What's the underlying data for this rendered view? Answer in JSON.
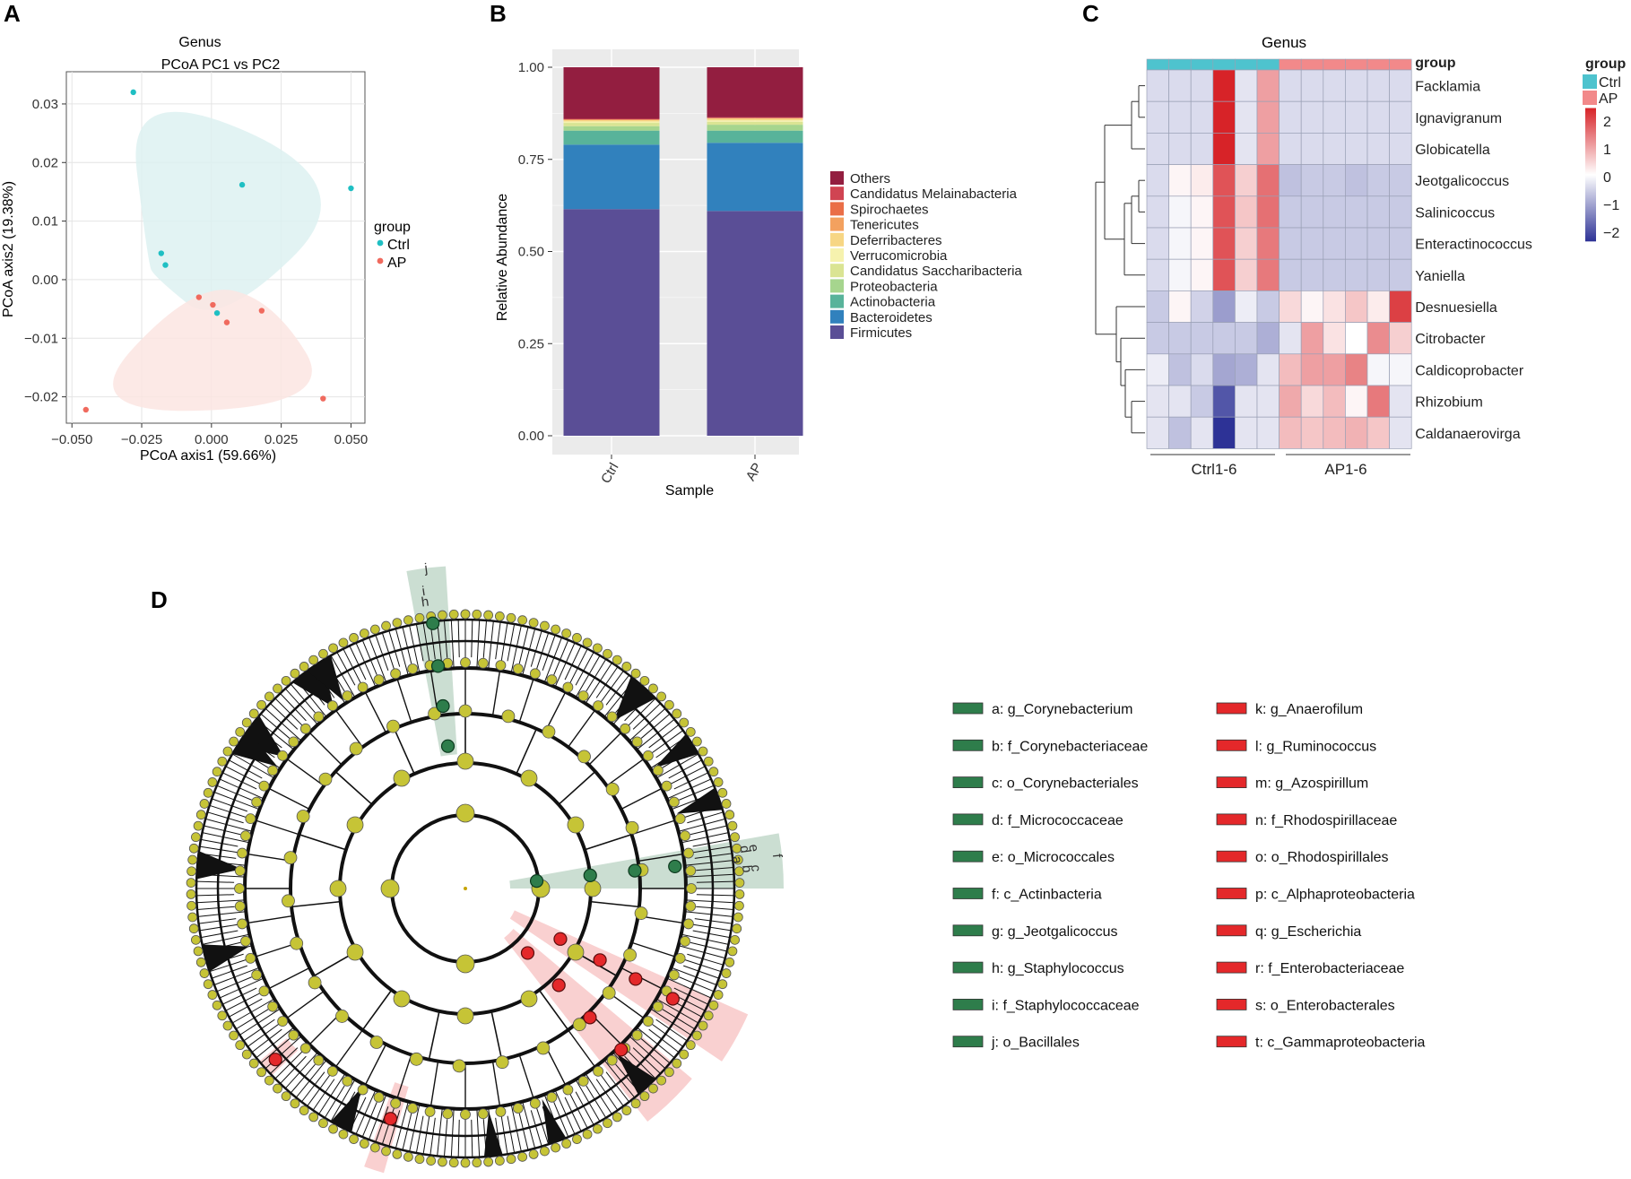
{
  "panels": {
    "A": "A",
    "B": "B",
    "C": "C",
    "D": "D"
  },
  "chart_data": [
    {
      "type": "scatter",
      "title": "Genus",
      "subtitle": "PCoA PC1 vs PC2",
      "xlabel": "PCoA axis1 (59.66%)",
      "ylabel": "PCoA axis2 (19.38%)",
      "xlim": [
        -0.052,
        0.055
      ],
      "ylim": [
        -0.0245,
        0.0355
      ],
      "xticks": [
        -0.05,
        -0.025,
        0.0,
        0.025,
        0.05
      ],
      "xtick_labels": [
        "−0.050",
        "−0.025",
        "0.000",
        "0.025",
        "0.050"
      ],
      "yticks": [
        -0.02,
        -0.01,
        0.0,
        0.01,
        0.02,
        0.03
      ],
      "ytick_labels": [
        "−0.02",
        "−0.01",
        "0.00",
        "0.01",
        "0.02",
        "0.03"
      ],
      "legend_title": "group",
      "series": [
        {
          "name": "Ctrl",
          "color": "#1FBFC3",
          "hull_color": "#DDF1F1",
          "points": [
            [
              -0.028,
              0.032
            ],
            [
              0.011,
              0.0162
            ],
            [
              0.05,
              0.0156
            ],
            [
              -0.018,
              0.0045
            ],
            [
              -0.0165,
              0.0025
            ],
            [
              0.002,
              -0.0057
            ]
          ]
        },
        {
          "name": "AP",
          "color": "#F06A5E",
          "hull_color": "#FBE5E2",
          "points": [
            [
              -0.0045,
              -0.003
            ],
            [
              0.0005,
              -0.0043
            ],
            [
              0.0055,
              -0.0073
            ],
            [
              0.018,
              -0.0053
            ],
            [
              0.04,
              -0.0203
            ],
            [
              -0.045,
              -0.0222
            ]
          ]
        }
      ]
    },
    {
      "type": "bar",
      "stacked": true,
      "xlabel": "Sample",
      "ylabel": "Relative Abundance",
      "categories": [
        "Ctrl",
        "AP"
      ],
      "ylim": [
        0,
        1.0
      ],
      "yticks": [
        0,
        0.25,
        0.5,
        0.75,
        1.0
      ],
      "ytick_labels": [
        "0.00",
        "0.25",
        "0.50",
        "0.75",
        "1.00"
      ],
      "series": [
        {
          "name": "Firmicutes",
          "color": "#5A4E96",
          "values": [
            0.615,
            0.61
          ]
        },
        {
          "name": "Bacteroidetes",
          "color": "#3181BD",
          "values": [
            0.175,
            0.185
          ]
        },
        {
          "name": "Actinobacteria",
          "color": "#58B39A",
          "values": [
            0.038,
            0.033
          ]
        },
        {
          "name": "Proteobacteria",
          "color": "#A6D58E",
          "values": [
            0.012,
            0.016
          ]
        },
        {
          "name": "Candidatus Saccharibacteria",
          "color": "#DAE493",
          "values": [
            0.009,
            0.008
          ]
        },
        {
          "name": "Verrucomicrobia",
          "color": "#F6F2AE",
          "values": [
            0.004,
            0.004
          ]
        },
        {
          "name": "Deferribacteres",
          "color": "#F7D684",
          "values": [
            0.004,
            0.005
          ]
        },
        {
          "name": "Tenericutes",
          "color": "#F3A15F",
          "values": [
            0.001,
            0.001
          ]
        },
        {
          "name": "Spirochaetes",
          "color": "#EA6E47",
          "values": [
            0.001,
            0.001
          ]
        },
        {
          "name": "Candidatus Melainabacteria",
          "color": "#D04452",
          "values": [
            0.001,
            0.001
          ]
        },
        {
          "name": "Others",
          "color": "#931E40",
          "values": [
            0.14,
            0.136
          ]
        }
      ],
      "legend_order": [
        "Others",
        "Candidatus Melainabacteria",
        "Spirochaetes",
        "Tenericutes",
        "Deferribacteres",
        "Verrucomicrobia",
        "Candidatus Saccharibacteria",
        "Proteobacteria",
        "Actinobacteria",
        "Bacteroidetes",
        "Firmicutes"
      ]
    },
    {
      "type": "heatmap",
      "title": "Genus",
      "annotation_title": "group",
      "groups": [
        {
          "name": "Ctrl",
          "color": "#4EC3CE"
        },
        {
          "name": "AP",
          "color": "#F2898A"
        }
      ],
      "column_groups": [
        "Ctrl",
        "Ctrl",
        "Ctrl",
        "Ctrl",
        "Ctrl",
        "Ctrl",
        "AP",
        "AP",
        "AP",
        "AP",
        "AP",
        "AP"
      ],
      "group_labels": [
        "Ctrl1-6",
        "AP1-6"
      ],
      "scale_ticks": [
        2,
        1,
        0,
        -1,
        -2
      ],
      "scale_tick_labels": [
        "2",
        "1",
        "0",
        "−1",
        "−2"
      ],
      "rows": [
        "Facklamia",
        "Ignavigranum",
        "Globicatella",
        "Jeotgalicoccus",
        "Salinicoccus",
        "Enteractinococcus",
        "Yaniella",
        "Desnuesiella",
        "Citrobacter",
        "Caldicoprobacter",
        "Rhizobium",
        "Caldanaerovirga"
      ],
      "values": [
        [
          -0.4,
          -0.4,
          -0.4,
          2.3,
          -0.3,
          1.0,
          -0.4,
          -0.4,
          -0.4,
          -0.4,
          -0.4,
          -0.4
        ],
        [
          -0.4,
          -0.4,
          -0.4,
          2.3,
          -0.3,
          1.0,
          -0.4,
          -0.4,
          -0.4,
          -0.4,
          -0.4,
          -0.4
        ],
        [
          -0.4,
          -0.4,
          -0.4,
          2.3,
          -0.3,
          1.0,
          -0.4,
          -0.4,
          -0.4,
          -0.4,
          -0.4,
          -0.4
        ],
        [
          -0.4,
          0.1,
          0.2,
          1.8,
          0.5,
          1.5,
          -0.7,
          -0.6,
          -0.6,
          -0.7,
          -0.6,
          -0.6
        ],
        [
          -0.4,
          -0.1,
          0.1,
          1.8,
          0.6,
          1.5,
          -0.6,
          -0.6,
          -0.6,
          -0.6,
          -0.6,
          -0.6
        ],
        [
          -0.4,
          -0.1,
          0.1,
          1.8,
          0.5,
          1.4,
          -0.6,
          -0.6,
          -0.6,
          -0.6,
          -0.6,
          -0.6
        ],
        [
          -0.4,
          -0.1,
          0.1,
          1.8,
          0.5,
          1.4,
          -0.6,
          -0.6,
          -0.6,
          -0.6,
          -0.6,
          -0.6
        ],
        [
          -0.6,
          0.1,
          -0.5,
          -1.1,
          -0.2,
          -0.6,
          0.4,
          0.1,
          0.3,
          0.6,
          0.2,
          2.0
        ],
        [
          -0.6,
          -0.6,
          -0.6,
          -0.6,
          -0.6,
          -0.9,
          -0.3,
          1.0,
          0.3,
          0.0,
          1.2,
          0.5
        ],
        [
          -0.2,
          -0.7,
          -0.4,
          -1.0,
          -0.9,
          -0.3,
          0.7,
          1.0,
          1.0,
          1.3,
          -0.1,
          -0.1
        ],
        [
          -0.3,
          -0.3,
          -0.6,
          -1.9,
          -0.3,
          -0.3,
          0.9,
          0.4,
          0.7,
          0.1,
          1.4,
          -0.3
        ],
        [
          -0.3,
          -0.7,
          -0.3,
          -2.3,
          -0.3,
          -0.3,
          0.7,
          0.6,
          0.7,
          0.8,
          0.6,
          -0.3
        ]
      ]
    },
    {
      "type": "cladogram",
      "marker_labels": {
        "ctrl": [
          "a",
          "b",
          "c",
          "d",
          "e",
          "f",
          "g",
          "h",
          "i",
          "j"
        ],
        "ap": [
          "k",
          "l",
          "m",
          "n",
          "o",
          "p",
          "q",
          "r",
          "s",
          "t"
        ]
      },
      "colors": {
        "ctrl": "#2E7D4B",
        "ap": "#E4282A",
        "node": "#C6C436"
      },
      "legend": {
        "ctrl": [
          "a: g_Corynebacterium",
          "b: f_Corynebacteriaceae",
          "c: o_Corynebacteriales",
          "d: f_Micrococcaceae",
          "e: o_Micrococcales",
          "f: c_Actinbacteria",
          "g: g_Jeotgalicoccus",
          "h: g_Staphylococcus",
          "i: f_Staphylococcaceae",
          "j: o_Bacillales"
        ],
        "ap": [
          "k: g_Anaerofilum",
          "l: g_Ruminococcus",
          "m: g_Azospirillum",
          "n: f_Rhodospirillaceae",
          "o: o_Rhodospirillales",
          "p: c_Alphaproteobacteria",
          "q: g_Escherichia",
          "r: f_Enterobacteriaceae",
          "s: o_Enterobacterales",
          "t: c_Gammaproteobacteria"
        ]
      }
    }
  ]
}
